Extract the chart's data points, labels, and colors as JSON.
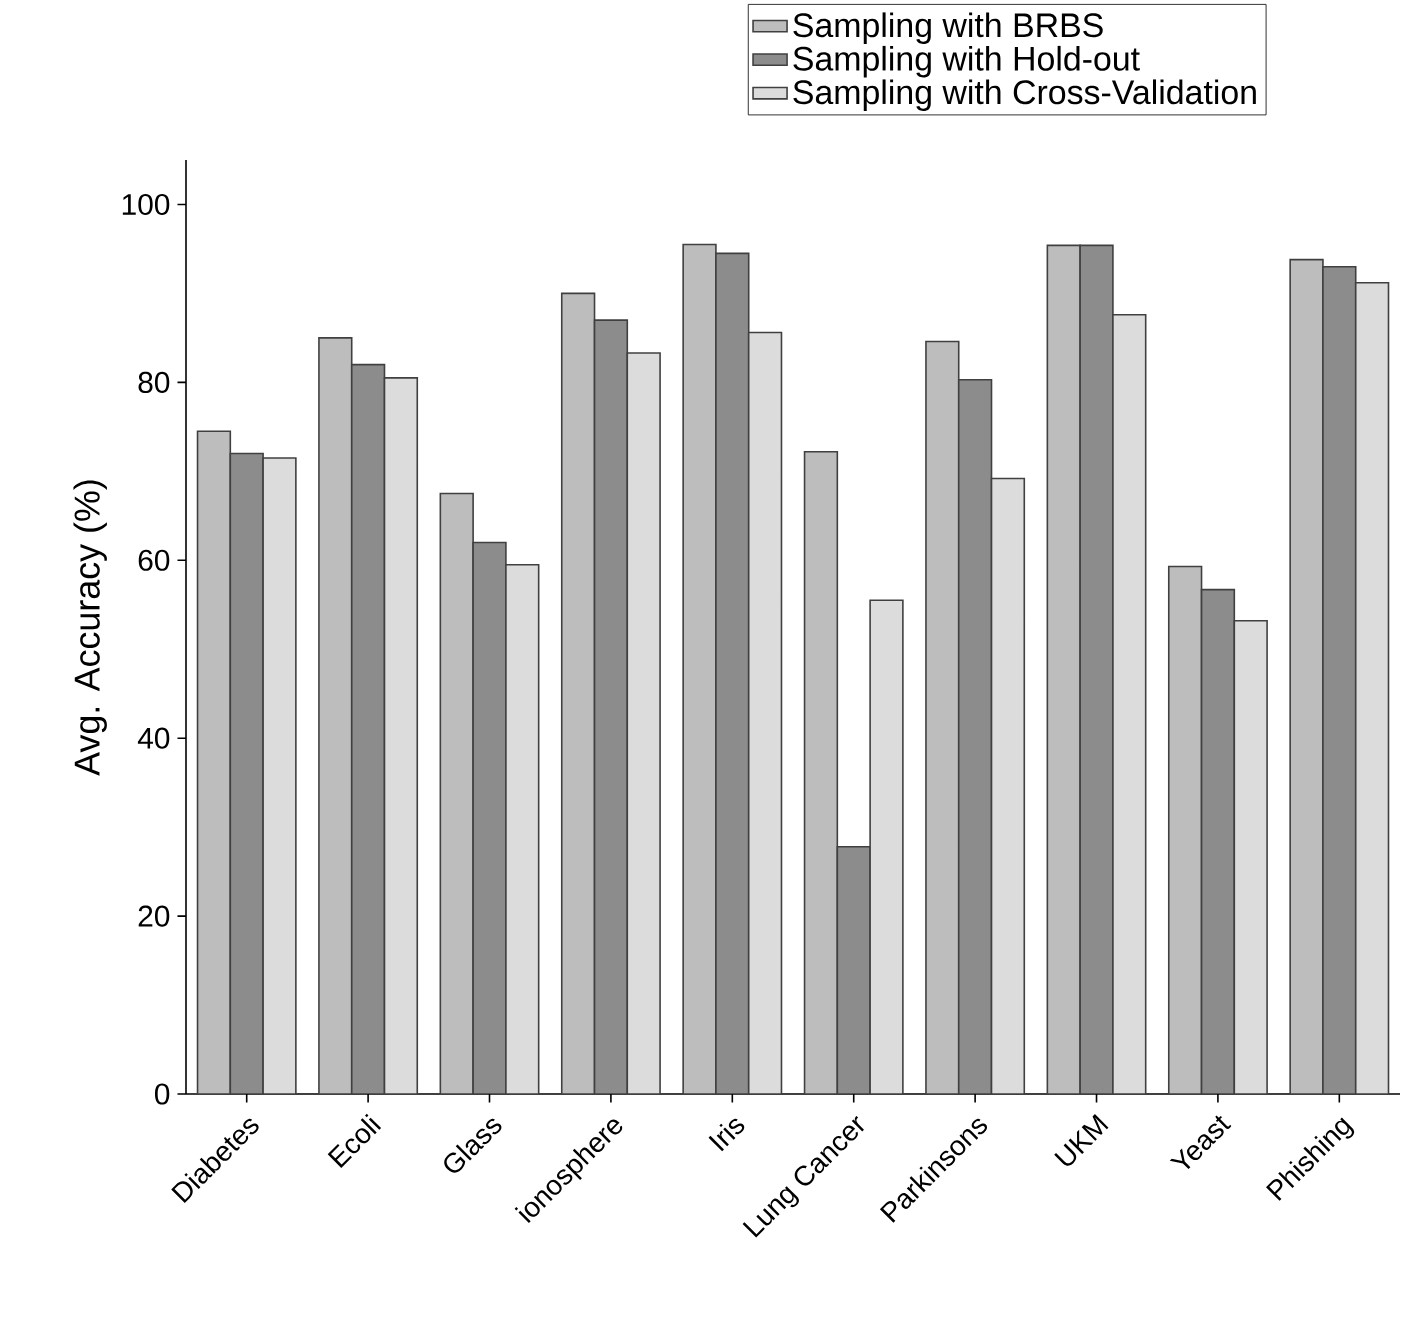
{
  "chart_data": {
    "type": "bar",
    "ylabel": "Avg. Accuracy (%)",
    "categories": [
      "Diabetes",
      "Ecoli",
      "Glass",
      "ionosphere",
      "Iris",
      "Lung Cancer",
      "Parkinsons",
      "UKM",
      "Yeast",
      "Phishing"
    ],
    "series": [
      {
        "name": "Sampling with BRBS",
        "color": "#bdbdbd",
        "values": [
          74.5,
          85,
          67.5,
          90,
          95.5,
          72.2,
          84.6,
          95.4,
          59.3,
          93.8
        ]
      },
      {
        "name": "Sampling with Hold-out",
        "color": "#8c8c8c",
        "values": [
          72,
          82,
          62,
          87,
          94.5,
          27.8,
          80.3,
          95.4,
          56.7,
          93
        ]
      },
      {
        "name": "Sampling with Cross-Validation",
        "color": "#dcdcdc",
        "values": [
          71.5,
          80.5,
          59.5,
          83.3,
          85.6,
          55.5,
          69.2,
          87.6,
          53.2,
          91.2
        ]
      }
    ],
    "ylim": [
      0,
      105
    ],
    "yticks": [
      0,
      20,
      40,
      60,
      80,
      100
    ],
    "legend": "top right"
  }
}
